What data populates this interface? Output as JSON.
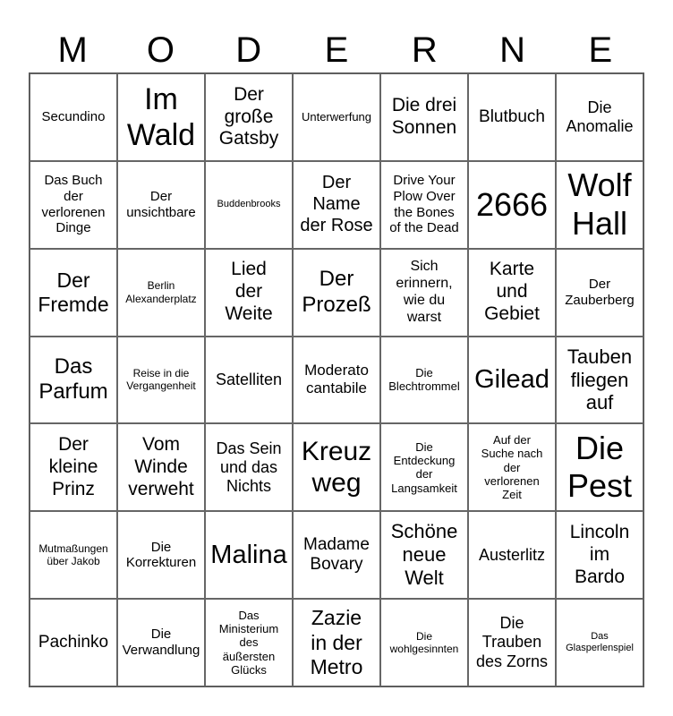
{
  "title_letters": [
    "M",
    "O",
    "D",
    "E",
    "R",
    "N",
    "E"
  ],
  "cells": [
    [
      "Secundino",
      "Im\nWald",
      "Der\ngroße\nGatsby",
      "Unterwerfung",
      "Die drei\nSonnen",
      "Blutbuch",
      "Die\nAnomalie"
    ],
    [
      "Das Buch\nder\nverlorenen\nDinge",
      "Der\nunsichtbare",
      "Buddenbrooks",
      "Der\nName\nder Rose",
      "Drive Your\nPlow Over\nthe Bones\nof the Dead",
      "2666",
      "Wolf\nHall"
    ],
    [
      "Der\nFremde",
      "Berlin\nAlexanderplatz",
      "Lied\nder\nWeite",
      "Der\nProzeß",
      "Sich\nerinnern,\nwie du\nwarst",
      "Karte\nund\nGebiet",
      "Der\nZauberberg"
    ],
    [
      "Das\nParfum",
      "Reise in die\nVergangenheit",
      "Satelliten",
      "Moderato\ncantabile",
      "Die\nBlechtrommel",
      "Gilead",
      "Tauben\nfliegen\nauf"
    ],
    [
      "Der\nkleine\nPrinz",
      "Vom\nWinde\nverweht",
      "Das Sein\nund das\nNichts",
      "Kreuz\nweg",
      "Die\nEntdeckung\nder\nLangsamkeit",
      "Auf der\nSuche nach\nder\nverlorenen\nZeit",
      "Die\nPest"
    ],
    [
      "Mutmaßungen\nüber Jakob",
      "Die\nKorrekturen",
      "Malina",
      "Madame\nBovary",
      "Schöne\nneue\nWelt",
      "Austerlitz",
      "Lincoln\nim\nBardo"
    ],
    [
      "Pachinko",
      "Die\nVerwandlung",
      "Das\nMinisterium\ndes\näußersten\nGlücks",
      "Zazie\nin der\nMetro",
      "Die\nwohlgesinnten",
      "Die\nTrauben\ndes Zorns",
      "Das\nGlasperlenspiel"
    ]
  ]
}
